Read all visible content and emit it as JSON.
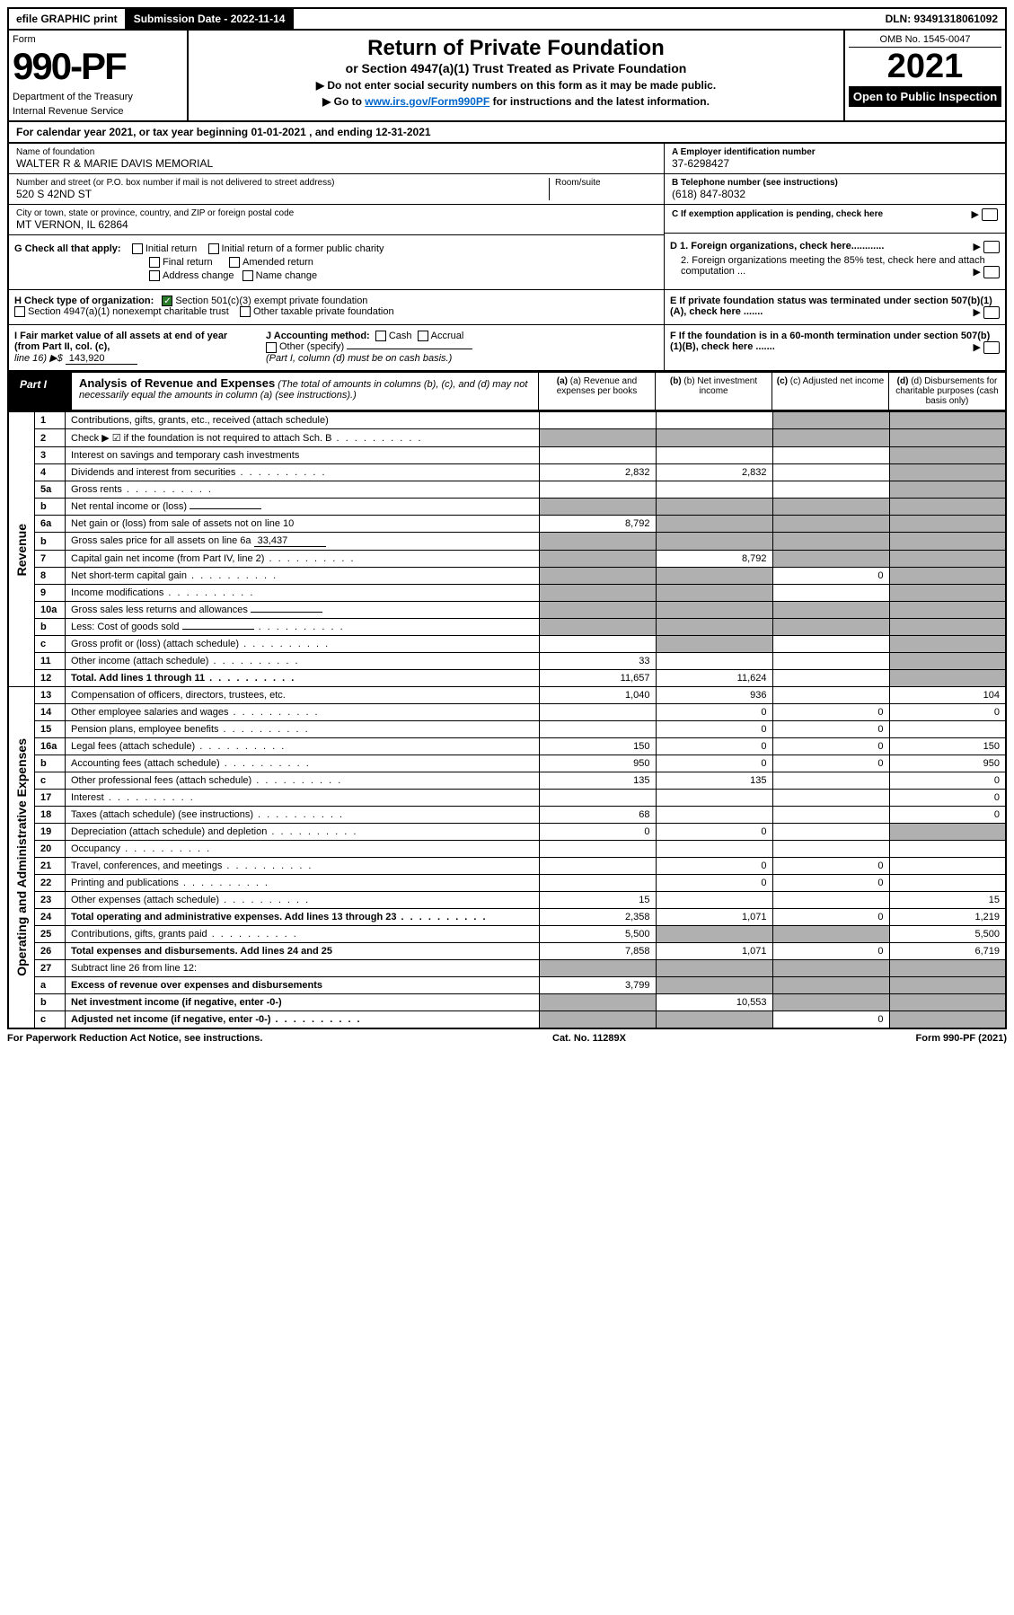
{
  "topbar": {
    "efile": "efile GRAPHIC print",
    "submission": "Submission Date - 2022-11-14",
    "dln": "DLN: 93491318061092"
  },
  "header": {
    "form_word": "Form",
    "form_num": "990-PF",
    "dept1": "Department of the Treasury",
    "dept2": "Internal Revenue Service",
    "title": "Return of Private Foundation",
    "subtitle": "or Section 4947(a)(1) Trust Treated as Private Foundation",
    "note1": "▶ Do not enter social security numbers on this form as it may be made public.",
    "note2_pre": "▶ Go to ",
    "note2_link": "www.irs.gov/Form990PF",
    "note2_post": " for instructions and the latest information.",
    "omb": "OMB No. 1545-0047",
    "year": "2021",
    "open": "Open to Public Inspection"
  },
  "cal": "For calendar year 2021, or tax year beginning 01-01-2021          , and ending 12-31-2021",
  "info": {
    "name_lbl": "Name of foundation",
    "name_val": "WALTER R & MARIE DAVIS MEMORIAL",
    "addr_lbl": "Number and street (or P.O. box number if mail is not delivered to street address)",
    "addr_val": "520 S 42ND ST",
    "room_lbl": "Room/suite",
    "city_lbl": "City or town, state or province, country, and ZIP or foreign postal code",
    "city_val": "MT VERNON, IL  62864",
    "a_lbl": "A Employer identification number",
    "a_val": "37-6298427",
    "b_lbl": "B Telephone number (see instructions)",
    "b_val": "(618) 847-8032",
    "c_lbl": "C If exemption application is pending, check here"
  },
  "g": {
    "label": "G Check all that apply:",
    "initial": "Initial return",
    "initial_former": "Initial return of a former public charity",
    "final": "Final return",
    "amended": "Amended return",
    "address": "Address change",
    "name": "Name change"
  },
  "d": {
    "d1": "D 1. Foreign organizations, check here............",
    "d2": "2. Foreign organizations meeting the 85% test, check here and attach computation ..."
  },
  "h": {
    "label": "H Check type of organization:",
    "opt1": "Section 501(c)(3) exempt private foundation",
    "opt2": "Section 4947(a)(1) nonexempt charitable trust",
    "opt3": "Other taxable private foundation"
  },
  "e": "E  If private foundation status was terminated under section 507(b)(1)(A), check here .......",
  "i": {
    "label": "I Fair market value of all assets at end of year (from Part II, col. (c),",
    "line": "line 16) ▶$",
    "val": "143,920"
  },
  "j": {
    "label": "J Accounting method:",
    "cash": "Cash",
    "accrual": "Accrual",
    "other": "Other (specify)",
    "note": "(Part I, column (d) must be on cash basis.)"
  },
  "f": "F  If the foundation is in a 60-month termination under section 507(b)(1)(B), check here .......",
  "part1": {
    "label": "Part I",
    "title": "Analysis of Revenue and Expenses",
    "title_note": " (The total of amounts in columns (b), (c), and (d) may not necessarily equal the amounts in column (a) (see instructions).)",
    "col_a": "(a)  Revenue and expenses per books",
    "col_b": "(b)  Net investment income",
    "col_c": "(c)  Adjusted net income",
    "col_d": "(d)  Disbursements for charitable purposes (cash basis only)"
  },
  "side": {
    "revenue": "Revenue",
    "expenses": "Operating and Administrative Expenses"
  },
  "rows": [
    {
      "n": "1",
      "d": "Contributions, gifts, grants, etc., received (attach schedule)",
      "a": "",
      "b": "",
      "c": "shade",
      "dd": "shade"
    },
    {
      "n": "2",
      "d": "Check ▶ ☑ if the foundation is not required to attach Sch. B",
      "dots": true,
      "a": "shade",
      "b": "shade",
      "c": "shade",
      "dd": "shade"
    },
    {
      "n": "3",
      "d": "Interest on savings and temporary cash investments",
      "a": "",
      "b": "",
      "c": "",
      "dd": "shade"
    },
    {
      "n": "4",
      "d": "Dividends and interest from securities",
      "dots": true,
      "a": "2,832",
      "b": "2,832",
      "c": "",
      "dd": "shade"
    },
    {
      "n": "5a",
      "d": "Gross rents",
      "dots": true,
      "a": "",
      "b": "",
      "c": "",
      "dd": "shade"
    },
    {
      "n": "b",
      "d": "Net rental income or (loss)",
      "uline": true,
      "a": "shade",
      "b": "shade",
      "c": "shade",
      "dd": "shade"
    },
    {
      "n": "6a",
      "d": "Net gain or (loss) from sale of assets not on line 10",
      "a": "8,792",
      "b": "shade",
      "c": "shade",
      "dd": "shade"
    },
    {
      "n": "b",
      "d": "Gross sales price for all assets on line 6a",
      "uline": true,
      "uval": "33,437",
      "a": "shade",
      "b": "shade",
      "c": "shade",
      "dd": "shade"
    },
    {
      "n": "7",
      "d": "Capital gain net income (from Part IV, line 2)",
      "dots": true,
      "a": "shade",
      "b": "8,792",
      "c": "shade",
      "dd": "shade"
    },
    {
      "n": "8",
      "d": "Net short-term capital gain",
      "dots": true,
      "a": "shade",
      "b": "shade",
      "c": "0",
      "dd": "shade"
    },
    {
      "n": "9",
      "d": "Income modifications",
      "dots": true,
      "a": "shade",
      "b": "shade",
      "c": "",
      "dd": "shade"
    },
    {
      "n": "10a",
      "d": "Gross sales less returns and allowances",
      "uline": true,
      "a": "shade",
      "b": "shade",
      "c": "shade",
      "dd": "shade"
    },
    {
      "n": "b",
      "d": "Less: Cost of goods sold",
      "dots": true,
      "uline": true,
      "a": "shade",
      "b": "shade",
      "c": "shade",
      "dd": "shade"
    },
    {
      "n": "c",
      "d": "Gross profit or (loss) (attach schedule)",
      "dots": true,
      "a": "",
      "b": "shade",
      "c": "",
      "dd": "shade"
    },
    {
      "n": "11",
      "d": "Other income (attach schedule)",
      "dots": true,
      "a": "33",
      "b": "",
      "c": "",
      "dd": "shade"
    },
    {
      "n": "12",
      "d": "Total. Add lines 1 through 11",
      "dots": true,
      "bold": true,
      "a": "11,657",
      "b": "11,624",
      "c": "",
      "dd": "shade"
    },
    {
      "n": "13",
      "d": "Compensation of officers, directors, trustees, etc.",
      "a": "1,040",
      "b": "936",
      "c": "",
      "dd": "104"
    },
    {
      "n": "14",
      "d": "Other employee salaries and wages",
      "dots": true,
      "a": "",
      "b": "0",
      "c": "0",
      "dd": "0"
    },
    {
      "n": "15",
      "d": "Pension plans, employee benefits",
      "dots": true,
      "a": "",
      "b": "0",
      "c": "0",
      "dd": ""
    },
    {
      "n": "16a",
      "d": "Legal fees (attach schedule)",
      "dots": true,
      "a": "150",
      "b": "0",
      "c": "0",
      "dd": "150"
    },
    {
      "n": "b",
      "d": "Accounting fees (attach schedule)",
      "dots": true,
      "a": "950",
      "b": "0",
      "c": "0",
      "dd": "950"
    },
    {
      "n": "c",
      "d": "Other professional fees (attach schedule)",
      "dots": true,
      "a": "135",
      "b": "135",
      "c": "",
      "dd": "0"
    },
    {
      "n": "17",
      "d": "Interest",
      "dots": true,
      "a": "",
      "b": "",
      "c": "",
      "dd": "0"
    },
    {
      "n": "18",
      "d": "Taxes (attach schedule) (see instructions)",
      "dots": true,
      "a": "68",
      "b": "",
      "c": "",
      "dd": "0"
    },
    {
      "n": "19",
      "d": "Depreciation (attach schedule) and depletion",
      "dots": true,
      "a": "0",
      "b": "0",
      "c": "",
      "dd": "shade"
    },
    {
      "n": "20",
      "d": "Occupancy",
      "dots": true,
      "a": "",
      "b": "",
      "c": "",
      "dd": ""
    },
    {
      "n": "21",
      "d": "Travel, conferences, and meetings",
      "dots": true,
      "a": "",
      "b": "0",
      "c": "0",
      "dd": ""
    },
    {
      "n": "22",
      "d": "Printing and publications",
      "dots": true,
      "a": "",
      "b": "0",
      "c": "0",
      "dd": ""
    },
    {
      "n": "23",
      "d": "Other expenses (attach schedule)",
      "dots": true,
      "a": "15",
      "b": "",
      "c": "",
      "dd": "15"
    },
    {
      "n": "24",
      "d": "Total operating and administrative expenses. Add lines 13 through 23",
      "dots": true,
      "bold": true,
      "a": "2,358",
      "b": "1,071",
      "c": "0",
      "dd": "1,219"
    },
    {
      "n": "25",
      "d": "Contributions, gifts, grants paid",
      "dots": true,
      "a": "5,500",
      "b": "shade",
      "c": "shade",
      "dd": "5,500"
    },
    {
      "n": "26",
      "d": "Total expenses and disbursements. Add lines 24 and 25",
      "bold": true,
      "a": "7,858",
      "b": "1,071",
      "c": "0",
      "dd": "6,719"
    },
    {
      "n": "27",
      "d": "Subtract line 26 from line 12:",
      "a": "shade",
      "b": "shade",
      "c": "shade",
      "dd": "shade"
    },
    {
      "n": "a",
      "d": "Excess of revenue over expenses and disbursements",
      "bold": true,
      "a": "3,799",
      "b": "shade",
      "c": "shade",
      "dd": "shade"
    },
    {
      "n": "b",
      "d": "Net investment income (if negative, enter -0-)",
      "bold": true,
      "a": "shade",
      "b": "10,553",
      "c": "shade",
      "dd": "shade"
    },
    {
      "n": "c",
      "d": "Adjusted net income (if negative, enter -0-)",
      "dots": true,
      "bold": true,
      "a": "shade",
      "b": "shade",
      "c": "0",
      "dd": "shade"
    }
  ],
  "footer": {
    "left": "For Paperwork Reduction Act Notice, see instructions.",
    "mid": "Cat. No. 11289X",
    "right": "Form 990-PF (2021)"
  },
  "colors": {
    "black": "#000000",
    "shade": "#b0b0b0",
    "link": "#0066cc",
    "check": "#2a7a2a"
  }
}
